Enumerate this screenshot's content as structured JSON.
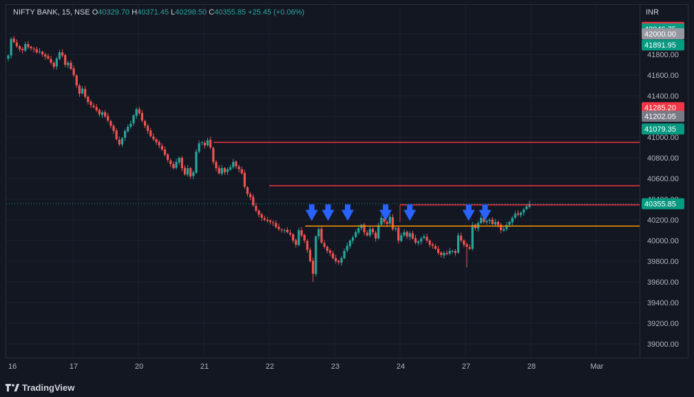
{
  "legend": {
    "symbol": "NIFTY BANK, 15, NSE",
    "o_label": "O",
    "o": "40329.70",
    "h_label": "H",
    "h": "40371.45",
    "l_label": "L",
    "l": "40298.50",
    "c_label": "C",
    "c": "40355.85",
    "change": "+25.45 (+0.06%)"
  },
  "currency": "INR",
  "price_ticks": [
    "41800.00",
    "41600.00",
    "41400.00",
    "41200.00",
    "41000.00",
    "40800.00",
    "40600.00",
    "40400.00",
    "40200.00",
    "40000.00",
    "39800.00",
    "39600.00",
    "39400.00",
    "39200.00",
    "39000.00"
  ],
  "price_badges": [
    {
      "label": "42061.55",
      "value": 42061.55,
      "color": "#f23645"
    },
    {
      "label": "42046.75",
      "value": 42046.75,
      "color": "#089981"
    },
    {
      "label": "42000.00",
      "value": 42000,
      "color": "#9598a1"
    },
    {
      "label": "41891.95",
      "value": 41891.95,
      "color": "#089981"
    },
    {
      "label": "41285.20",
      "value": 41285.2,
      "color": "#f23645"
    },
    {
      "label": "41202.05",
      "value": 41202.05,
      "color": "#787b86"
    },
    {
      "label": "41079.35",
      "value": 41079.35,
      "color": "#089981"
    },
    {
      "label": "40355.85",
      "value": 40355.85,
      "color": "#089981"
    }
  ],
  "time_ticks": [
    "16",
    "17",
    "20",
    "21",
    "22",
    "23",
    "24",
    "27",
    "28",
    "Mar"
  ],
  "footer": {
    "brand": "TradingView",
    "logo_icon": "tradingview-logo-icon"
  },
  "colors": {
    "up": "#26a69a",
    "down": "#ef5350",
    "resistance": "#f23645",
    "support": "#ff9800",
    "arrow": "#2962ff"
  },
  "chart_data": {
    "type": "candlestick",
    "ylim": [
      38900,
      42100
    ],
    "closes": [
      41790,
      41950,
      41920,
      41880,
      41850,
      41840,
      41900,
      41870,
      41860,
      41850,
      41820,
      41830,
      41800,
      41780,
      41760,
      41720,
      41680,
      41760,
      41820,
      41790,
      41700,
      41720,
      41660,
      41600,
      41500,
      41420,
      41470,
      41390,
      41340,
      41310,
      41290,
      41260,
      41220,
      41240,
      41200,
      41160,
      41110,
      41060,
      40980,
      40930,
      40990,
      41060,
      41100,
      41130,
      41210,
      41270,
      41230,
      41160,
      41110,
      41060,
      41010,
      40980,
      40950,
      40920,
      40880,
      40830,
      40780,
      40740,
      40700,
      40760,
      40800,
      40700,
      40640,
      40700,
      40620,
      40660,
      40860,
      40940,
      40950,
      40920,
      40970,
      40900,
      40760,
      40700,
      40650,
      40700,
      40660,
      40690,
      40710,
      40760,
      40720,
      40690,
      40650,
      40520,
      40450,
      40420,
      40340,
      40290,
      40250,
      40220,
      40200,
      40190,
      40180,
      40170,
      40130,
      40110,
      40100,
      40100,
      40080,
      40060,
      40000,
      39960,
      40100,
      40050,
      40000,
      39910,
      39800,
      39680,
      40040,
      40110,
      39980,
      39940,
      39900,
      39880,
      39830,
      39800,
      39790,
      39830,
      39900,
      39950,
      40000,
      40030,
      40080,
      40120,
      40150,
      40080,
      40050,
      40110,
      40080,
      40020,
      40150,
      40220,
      40180,
      40160,
      40230,
      40110,
      40120,
      40000,
      40050,
      40080,
      40040,
      40070,
      40020,
      39980,
      39990,
      40020,
      40040,
      40000,
      39960,
      39950,
      39920,
      39880,
      39860,
      39880,
      39870,
      39900,
      39900,
      39880,
      40050,
      40000,
      39960,
      39940,
      39920,
      40150,
      40120,
      40170,
      40220,
      40180,
      40190,
      40200,
      40160,
      40180,
      40150,
      40100,
      40110,
      40150,
      40180,
      40220,
      40260,
      40250,
      40270,
      40300,
      40330,
      40355.85
    ],
    "levels": [
      {
        "price": 40950,
        "from": 21.15,
        "to": 29.95,
        "color": "resistance"
      },
      {
        "price": 40530,
        "from": 22.0,
        "to": 29.95,
        "color": "resistance"
      },
      {
        "price": 40345,
        "from": 24.0,
        "to": 29.95,
        "color": "resistance"
      },
      {
        "price": 40140,
        "from": 22.55,
        "to": 29.75,
        "color": "support"
      }
    ],
    "arrows": [
      22.65,
      22.9,
      23.2,
      23.78,
      24.15,
      27.05,
      27.3
    ],
    "current_price": 40355.85
  }
}
